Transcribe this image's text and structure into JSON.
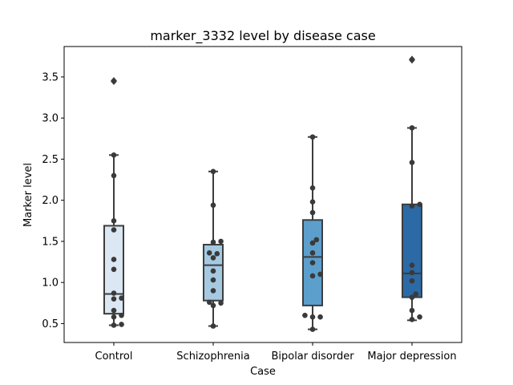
{
  "chart_data": {
    "type": "boxplot",
    "title": "marker_3332 level by disease case",
    "xlabel": "Case",
    "ylabel": "Marker level",
    "ylim": [
      0.27,
      3.87
    ],
    "yticks": [
      "0.5",
      "1.0",
      "1.5",
      "2.0",
      "2.5",
      "3.0",
      "3.5"
    ],
    "grid": false,
    "groups": [
      {
        "name": "Control",
        "color": "#dbe7f3",
        "box": {
          "whisker_low": 0.48,
          "q1": 0.62,
          "median": 0.86,
          "q3": 1.69,
          "whisker_high": 2.55
        },
        "outliers": [
          3.45
        ],
        "points": [
          0.48,
          0.49,
          0.58,
          0.6,
          0.66,
          0.8,
          0.81,
          0.87,
          1.16,
          1.28,
          1.64,
          1.75,
          2.3,
          2.55,
          3.45
        ]
      },
      {
        "name": "Schizophrenia",
        "color": "#a6c9e2",
        "box": {
          "whisker_low": 0.47,
          "q1": 0.78,
          "median": 1.21,
          "q3": 1.46,
          "whisker_high": 2.35
        },
        "outliers": [],
        "points": [
          0.47,
          0.72,
          0.75,
          0.76,
          0.9,
          1.03,
          1.14,
          1.3,
          1.35,
          1.36,
          1.49,
          1.5,
          1.94,
          2.35
        ]
      },
      {
        "name": "Bipolar disorder",
        "color": "#5c9fcd",
        "box": {
          "whisker_low": 0.43,
          "q1": 0.72,
          "median": 1.31,
          "q3": 1.76,
          "whisker_high": 2.77
        },
        "outliers": [],
        "points": [
          0.43,
          0.58,
          0.58,
          0.6,
          1.08,
          1.1,
          1.24,
          1.36,
          1.48,
          1.52,
          1.85,
          1.98,
          2.15,
          2.77
        ]
      },
      {
        "name": "Major depression",
        "color": "#2b6aa6",
        "box": {
          "whisker_low": 0.54,
          "q1": 0.82,
          "median": 1.11,
          "q3": 1.95,
          "whisker_high": 2.88
        },
        "outliers": [
          3.71
        ],
        "points": [
          0.55,
          0.58,
          0.66,
          0.82,
          0.86,
          1.02,
          1.12,
          1.21,
          1.93,
          1.95,
          2.46,
          2.88,
          3.71
        ]
      }
    ]
  }
}
